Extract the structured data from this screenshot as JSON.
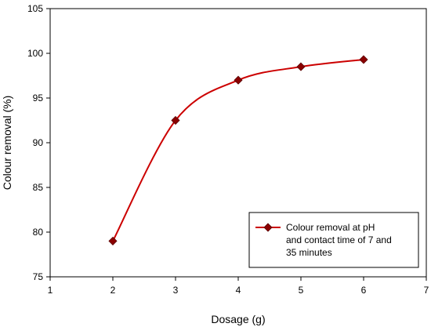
{
  "chart_data": {
    "type": "line",
    "title": "",
    "xlabel": "Dosage (g)",
    "ylabel": "Colour removal (%)",
    "xlim": [
      1,
      7
    ],
    "ylim": [
      75,
      105
    ],
    "xticks": [
      1,
      2,
      3,
      4,
      5,
      6,
      7
    ],
    "yticks": [
      75,
      80,
      85,
      90,
      95,
      100,
      105
    ],
    "grid": false,
    "legend_position": "bottom-right",
    "series": [
      {
        "name": "Colour removal at pH and contact time of 7 and 35 minutes",
        "name_lines": [
          "Colour removal at pH",
          "and contact time of 7 and",
          "35 minutes"
        ],
        "x": [
          2,
          3,
          4,
          5,
          6
        ],
        "y": [
          79,
          92.5,
          97,
          98.5,
          99.3
        ],
        "color": "#cc0000",
        "marker": "diamond",
        "marker_color": "#8b0000",
        "smooth": true
      }
    ]
  }
}
